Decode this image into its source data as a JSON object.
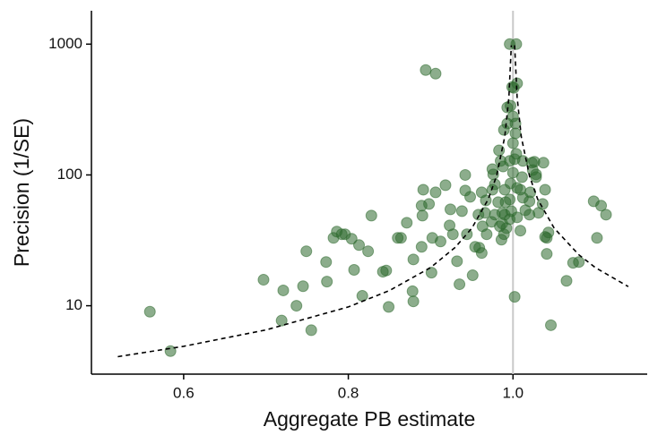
{
  "chart_data": {
    "type": "scatter",
    "x_label": "Aggregate PB estimate",
    "y_label": "Precision (1/SE)",
    "xlim": [
      0.488,
      1.163
    ],
    "ylim": [
      3,
      1800
    ],
    "y_log": true,
    "xticks": [
      0.6,
      0.8,
      {
        "value": 1,
        "label": "1.0"
      }
    ],
    "yticks": [
      10,
      100,
      1000
    ],
    "vline": 1,
    "vline_color": "#c8c8c8",
    "series": [
      {
        "color": "#2d6a2d",
        "opacity": 0.55,
        "x": [
          0.559,
          0.584,
          0.697,
          0.721,
          0.719,
          0.737,
          0.745,
          0.755,
          0.749,
          0.773,
          0.782,
          0.786,
          0.792,
          0.796,
          0.804,
          0.774,
          0.807,
          0.813,
          0.817,
          0.824,
          0.828,
          0.842,
          0.846,
          0.849,
          0.86,
          0.864,
          0.871,
          0.879,
          0.878,
          0.879,
          0.89,
          0.891,
          0.889,
          0.889,
          0.901,
          0.898,
          0.906,
          0.902,
          0.912,
          0.918,
          0.923,
          0.927,
          0.924,
          0.932,
          0.938,
          0.935,
          0.942,
          0.942,
          0.944,
          0.948,
          0.951,
          0.954,
          0.958,
          0.962,
          0.963,
          0.966,
          0.967,
          0.968,
          0.974,
          0.975,
          0.975,
          0.978,
          0.978,
          0.982,
          0.983,
          0.985,
          0.986,
          0.987,
          0.988,
          0.989,
          0.99,
          0.99,
          0.991,
          0.993,
          0.993,
          0.996,
          0.996,
          0.997,
          0.998,
          0.999,
          1.0,
          1.0,
          1.003,
          1.003,
          1.004,
          1.005,
          1.005,
          1.009,
          1.011,
          1.012,
          1.012,
          1.015,
          1.02,
          1.021,
          1.024,
          1.023,
          1.026,
          1.028,
          1.031,
          1.036,
          1.039,
          1.039,
          1.043,
          1.037,
          0.894,
          0.906,
          0.996,
          1.004,
          1.001,
          1.005,
          1.002,
          0.997,
          1.0,
          1.046,
          1.065,
          1.041,
          1.041,
          1.073,
          1.098,
          1.107,
          1.113,
          1.102,
          1.08,
          0.996,
          0.987,
          0.976,
          1.002,
          1.028,
          1.02,
          0.992,
          0.989,
          1.009,
          0.984,
          0.962,
          0.959
        ],
        "values": [
          9.0,
          4.5,
          15.8,
          13.1,
          7.7,
          10,
          14.1,
          6.5,
          26.1,
          21.6,
          33.0,
          36.9,
          35.2,
          35.2,
          32.5,
          15.3,
          18.8,
          29.1,
          11.9,
          26.1,
          48.9,
          18.2,
          18.6,
          9.8,
          33.0,
          33.0,
          43.1,
          22.6,
          12.9,
          10.8,
          48.9,
          77.1,
          58.2,
          28.2,
          17.9,
          60.0,
          73.6,
          33.0,
          31.0,
          83.5,
          41.1,
          35.2,
          54.6,
          21.9,
          52.9,
          14.6,
          100,
          76.0,
          35.2,
          68.0,
          17.1,
          28.2,
          49.7,
          73.6,
          40.5,
          51.3,
          63.9,
          35.2,
          43.8,
          77.1,
          110.7,
          49.7,
          84.8,
          61.9,
          154,
          128,
          32.0,
          51.3,
          116,
          221,
          77.1,
          49.7,
          61.9,
          247,
          328,
          128,
          45.9,
          86.1,
          52.9,
          470,
          175,
          104,
          208,
          247,
          145,
          47.4,
          79.6,
          77.1,
          96.2,
          128,
          67.0,
          53.7,
          49.7,
          73.6,
          109,
          124,
          126,
          101,
          51.3,
          60.0,
          77.1,
          33.6,
          36.3,
          124,
          634,
          595,
          1000,
          1000,
          463,
          501,
          11.7,
          338,
          280,
          7.1,
          15.5,
          24.9,
          33.0,
          21.3,
          62.9,
          58.2,
          49.7,
          33.0,
          21.6,
          64.9,
          42.5,
          101,
          132,
          96.2,
          62.9,
          39.2,
          35.2,
          37.5,
          40.5,
          25.3,
          27.8
        ]
      },
      {
        "type": "line",
        "style": "dashed",
        "color": "#000000",
        "x": [
          0.52,
          0.6,
          0.7,
          0.8,
          0.85,
          0.9,
          0.93,
          0.95,
          0.97,
          0.98,
          0.99,
          0.995,
          0.998,
          null,
          1.002,
          1.005,
          1.01,
          1.02,
          1.03,
          1.05,
          1.08,
          1.1,
          1.14
        ],
        "values": [
          4.08,
          4.9,
          6.53,
          9.8,
          13.07,
          19.6,
          28,
          39.2,
          65.3,
          98,
          196,
          392,
          980,
          null,
          980,
          392,
          196,
          98,
          65.3,
          39.2,
          24.5,
          19.6,
          14
        ]
      }
    ]
  }
}
